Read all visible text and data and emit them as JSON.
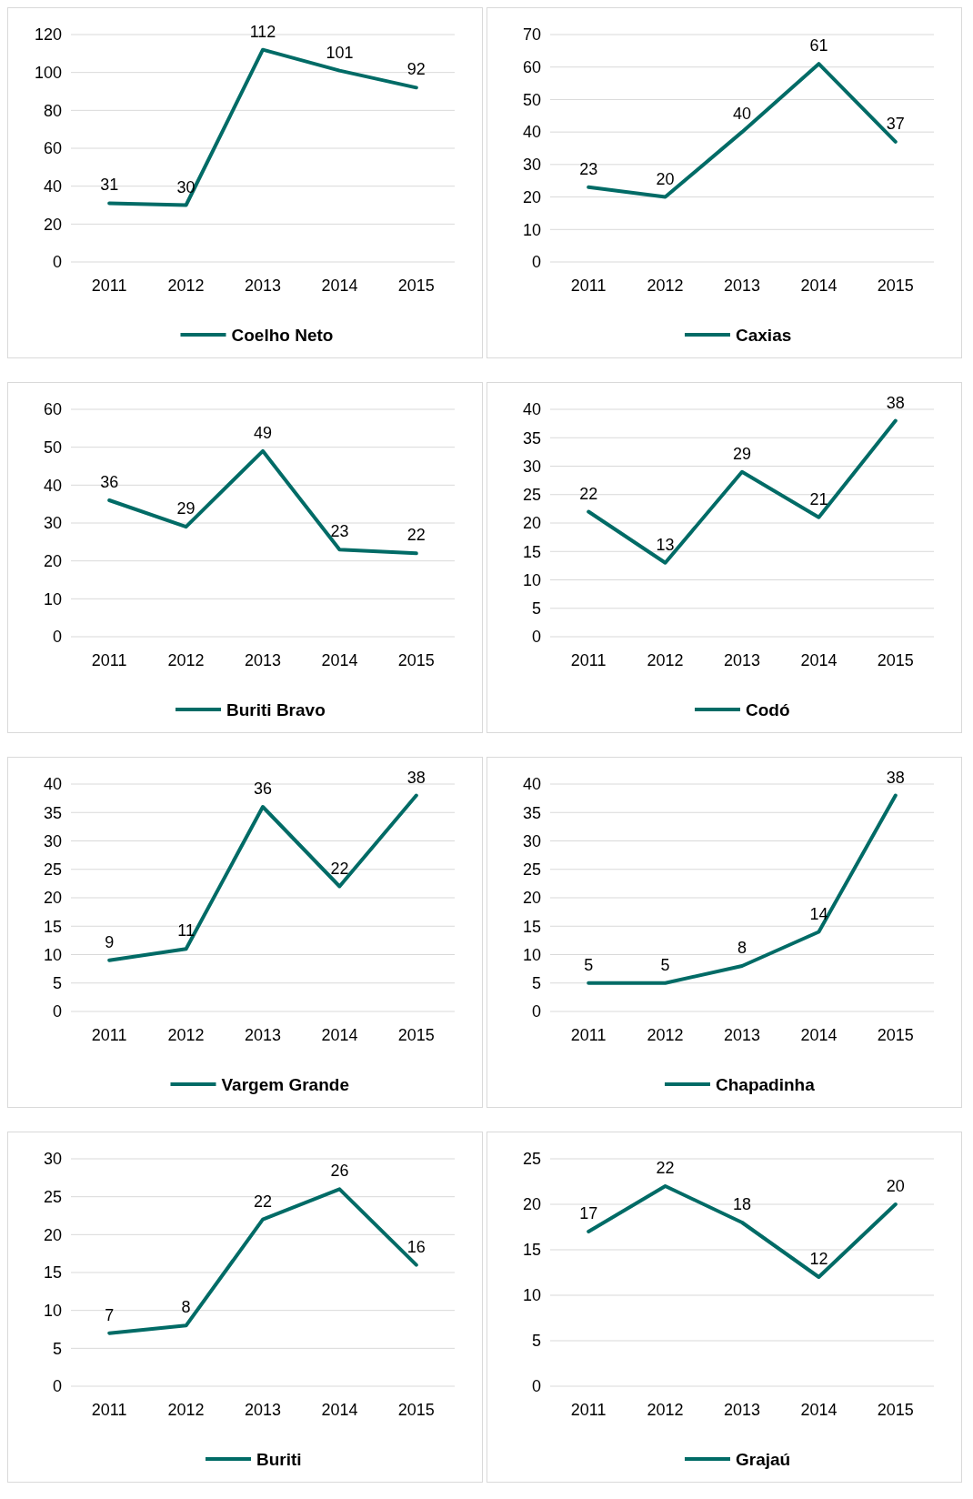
{
  "chart_data": [
    {
      "type": "line",
      "categories": [
        "2011",
        "2012",
        "2013",
        "2014",
        "2015"
      ],
      "series": [
        {
          "name": "Coelho Neto",
          "color": "#006b66",
          "values": [
            31,
            30,
            112,
            101,
            92
          ]
        }
      ],
      "ylim": [
        0,
        120
      ],
      "yticks": [
        0,
        20,
        40,
        60,
        80,
        100,
        120
      ],
      "grid": "y",
      "legend": "bottom",
      "data_labels": true
    },
    {
      "type": "line",
      "categories": [
        "2011",
        "2012",
        "2013",
        "2014",
        "2015"
      ],
      "series": [
        {
          "name": "Caxias",
          "color": "#006b66",
          "values": [
            23,
            20,
            40,
            61,
            37
          ]
        }
      ],
      "ylim": [
        0,
        70
      ],
      "yticks": [
        0,
        10,
        20,
        30,
        40,
        50,
        60,
        70
      ],
      "grid": "y",
      "legend": "bottom",
      "data_labels": true
    },
    {
      "type": "line",
      "categories": [
        "2011",
        "2012",
        "2013",
        "2014",
        "2015"
      ],
      "series": [
        {
          "name": "Buriti Bravo",
          "color": "#006b66",
          "values": [
            36,
            29,
            49,
            23,
            22
          ]
        }
      ],
      "ylim": [
        0,
        60
      ],
      "yticks": [
        0,
        10,
        20,
        30,
        40,
        50,
        60
      ],
      "grid": "y",
      "legend": "bottom",
      "data_labels": true
    },
    {
      "type": "line",
      "categories": [
        "2011",
        "2012",
        "2013",
        "2014",
        "2015"
      ],
      "series": [
        {
          "name": "Codó",
          "color": "#006b66",
          "values": [
            22,
            13,
            29,
            21,
            38
          ]
        }
      ],
      "ylim": [
        0,
        40
      ],
      "yticks": [
        0,
        5,
        10,
        15,
        20,
        25,
        30,
        35,
        40
      ],
      "grid": "y",
      "legend": "bottom",
      "data_labels": true
    },
    {
      "type": "line",
      "categories": [
        "2011",
        "2012",
        "2013",
        "2014",
        "2015"
      ],
      "series": [
        {
          "name": "Vargem Grande",
          "color": "#006b66",
          "values": [
            9,
            11,
            36,
            22,
            38
          ]
        }
      ],
      "ylim": [
        0,
        40
      ],
      "yticks": [
        0,
        5,
        10,
        15,
        20,
        25,
        30,
        35,
        40
      ],
      "grid": "y",
      "legend": "bottom",
      "data_labels": true
    },
    {
      "type": "line",
      "categories": [
        "2011",
        "2012",
        "2013",
        "2014",
        "2015"
      ],
      "series": [
        {
          "name": "Chapadinha",
          "color": "#006b66",
          "values": [
            5,
            5,
            8,
            14,
            38
          ]
        }
      ],
      "ylim": [
        0,
        40
      ],
      "yticks": [
        0,
        5,
        10,
        15,
        20,
        25,
        30,
        35,
        40
      ],
      "grid": "y",
      "legend": "bottom",
      "data_labels": true
    },
    {
      "type": "line",
      "categories": [
        "2011",
        "2012",
        "2013",
        "2014",
        "2015"
      ],
      "series": [
        {
          "name": "Buriti",
          "color": "#006b66",
          "values": [
            7,
            8,
            22,
            26,
            16
          ]
        }
      ],
      "ylim": [
        0,
        30
      ],
      "yticks": [
        0,
        5,
        10,
        15,
        20,
        25,
        30
      ],
      "grid": "y",
      "legend": "bottom",
      "data_labels": true
    },
    {
      "type": "line",
      "categories": [
        "2011",
        "2012",
        "2013",
        "2014",
        "2015"
      ],
      "series": [
        {
          "name": "Grajaú",
          "color": "#006b66",
          "values": [
            17,
            22,
            18,
            12,
            20
          ]
        }
      ],
      "ylim": [
        0,
        25
      ],
      "yticks": [
        0,
        5,
        10,
        15,
        20,
        25
      ],
      "grid": "y",
      "legend": "bottom",
      "data_labels": true
    }
  ]
}
